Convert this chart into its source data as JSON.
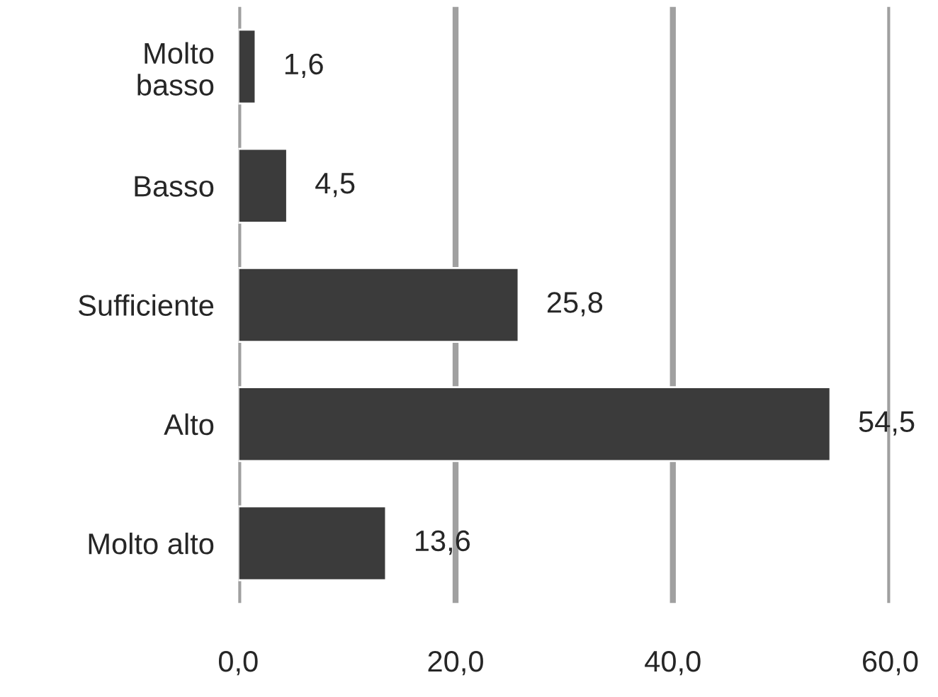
{
  "chart_data": {
    "type": "bar",
    "orientation": "horizontal",
    "categories": [
      "Molto\nbasso",
      "Basso",
      "Sufficiente",
      "Alto",
      "Molto alto"
    ],
    "values": [
      1.6,
      4.5,
      25.8,
      54.5,
      13.6
    ],
    "value_labels": [
      "1,6",
      "4,5",
      "25,8",
      "54,5",
      "13,6"
    ],
    "color": "#3b3b3b",
    "xlim": [
      0,
      60
    ],
    "xticks": [
      {
        "value": 0,
        "label": "0,0"
      },
      {
        "value": 20,
        "label": "20,0"
      },
      {
        "value": 40,
        "label": "40,0"
      },
      {
        "value": 60,
        "label": "60,0"
      }
    ],
    "grid": "x"
  }
}
